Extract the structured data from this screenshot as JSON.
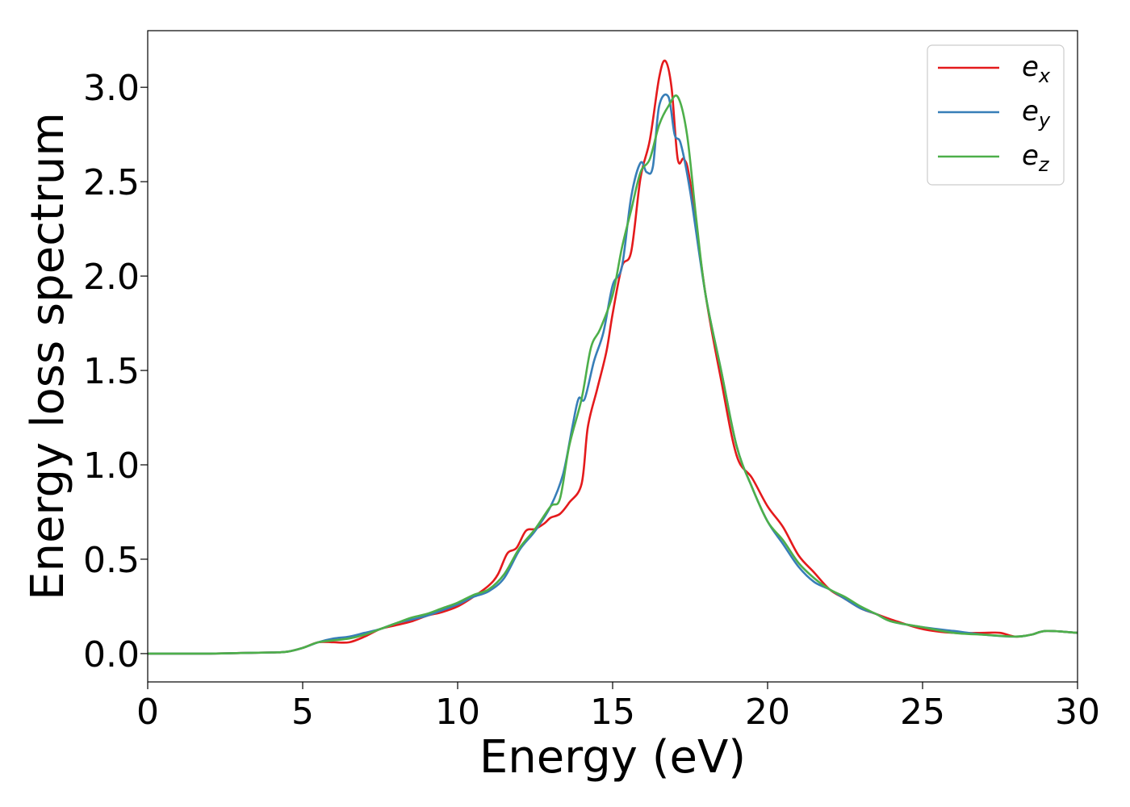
{
  "chart_data": {
    "type": "line",
    "xlabel": "Energy (eV)",
    "ylabel": "Energy loss spectrum",
    "xlim": [
      0,
      30
    ],
    "ylim": [
      -0.15,
      3.3
    ],
    "xticks": [
      0,
      5,
      10,
      15,
      20,
      25,
      30
    ],
    "yticks": [
      0.0,
      0.5,
      1.0,
      1.5,
      2.0,
      2.5,
      3.0
    ],
    "xtick_labels": [
      "0",
      "5",
      "10",
      "15",
      "20",
      "25",
      "30"
    ],
    "ytick_labels": [
      "0.0",
      "0.5",
      "1.0",
      "1.5",
      "2.0",
      "2.5",
      "3.0"
    ],
    "grid": false,
    "legend_position": "top-right",
    "series": [
      {
        "name": "e_x",
        "label_base": "e",
        "label_sub": "x",
        "color": "#e41a1c",
        "points": [
          [
            0,
            0.0
          ],
          [
            1,
            0.0
          ],
          [
            2,
            0.0
          ],
          [
            3,
            0.003
          ],
          [
            4,
            0.006
          ],
          [
            4.5,
            0.01
          ],
          [
            5,
            0.03
          ],
          [
            5.5,
            0.06
          ],
          [
            6,
            0.06
          ],
          [
            6.5,
            0.06
          ],
          [
            7,
            0.09
          ],
          [
            7.5,
            0.13
          ],
          [
            8,
            0.15
          ],
          [
            8.5,
            0.17
          ],
          [
            9,
            0.2
          ],
          [
            9.5,
            0.22
          ],
          [
            10,
            0.25
          ],
          [
            10.5,
            0.3
          ],
          [
            11,
            0.36
          ],
          [
            11.3,
            0.42
          ],
          [
            11.6,
            0.53
          ],
          [
            11.9,
            0.56
          ],
          [
            12.2,
            0.65
          ],
          [
            12.5,
            0.66
          ],
          [
            12.8,
            0.69
          ],
          [
            13,
            0.72
          ],
          [
            13.3,
            0.74
          ],
          [
            13.6,
            0.8
          ],
          [
            14,
            0.9
          ],
          [
            14.2,
            1.2
          ],
          [
            14.5,
            1.4
          ],
          [
            14.8,
            1.6
          ],
          [
            15,
            1.8
          ],
          [
            15.3,
            2.05
          ],
          [
            15.6,
            2.13
          ],
          [
            15.9,
            2.52
          ],
          [
            16.2,
            2.72
          ],
          [
            16.5,
            3.05
          ],
          [
            16.7,
            3.14
          ],
          [
            16.9,
            3.0
          ],
          [
            17.1,
            2.62
          ],
          [
            17.3,
            2.62
          ],
          [
            17.5,
            2.5
          ],
          [
            18,
            1.9
          ],
          [
            18.5,
            1.45
          ],
          [
            19,
            1.05
          ],
          [
            19.5,
            0.93
          ],
          [
            20,
            0.78
          ],
          [
            20.5,
            0.67
          ],
          [
            21,
            0.52
          ],
          [
            21.5,
            0.43
          ],
          [
            22,
            0.34
          ],
          [
            22.5,
            0.29
          ],
          [
            23,
            0.24
          ],
          [
            23.5,
            0.21
          ],
          [
            24,
            0.18
          ],
          [
            25,
            0.13
          ],
          [
            26,
            0.11
          ],
          [
            27,
            0.11
          ],
          [
            27.5,
            0.11
          ],
          [
            28,
            0.09
          ],
          [
            28.5,
            0.1
          ],
          [
            29,
            0.12
          ],
          [
            30,
            0.11
          ]
        ]
      },
      {
        "name": "e_y",
        "label_base": "e",
        "label_sub": "y",
        "color": "#377eb8",
        "points": [
          [
            0,
            0.0
          ],
          [
            1,
            0.0
          ],
          [
            2,
            0.0
          ],
          [
            3,
            0.003
          ],
          [
            4,
            0.006
          ],
          [
            4.5,
            0.01
          ],
          [
            5,
            0.03
          ],
          [
            5.5,
            0.06
          ],
          [
            6,
            0.08
          ],
          [
            6.5,
            0.09
          ],
          [
            7,
            0.11
          ],
          [
            7.5,
            0.13
          ],
          [
            8,
            0.16
          ],
          [
            8.5,
            0.18
          ],
          [
            9,
            0.2
          ],
          [
            9.5,
            0.23
          ],
          [
            10,
            0.26
          ],
          [
            10.5,
            0.3
          ],
          [
            11,
            0.33
          ],
          [
            11.5,
            0.4
          ],
          [
            12,
            0.55
          ],
          [
            12.5,
            0.65
          ],
          [
            13,
            0.78
          ],
          [
            13.4,
            0.95
          ],
          [
            13.7,
            1.2
          ],
          [
            13.9,
            1.35
          ],
          [
            14.1,
            1.35
          ],
          [
            14.4,
            1.55
          ],
          [
            14.7,
            1.7
          ],
          [
            15,
            1.95
          ],
          [
            15.3,
            2.05
          ],
          [
            15.6,
            2.42
          ],
          [
            15.9,
            2.6
          ],
          [
            16.1,
            2.55
          ],
          [
            16.3,
            2.58
          ],
          [
            16.5,
            2.9
          ],
          [
            16.8,
            2.95
          ],
          [
            17.0,
            2.75
          ],
          [
            17.2,
            2.7
          ],
          [
            17.5,
            2.45
          ],
          [
            18,
            1.9
          ],
          [
            18.5,
            1.5
          ],
          [
            19,
            1.1
          ],
          [
            19.5,
            0.88
          ],
          [
            20,
            0.7
          ],
          [
            20.5,
            0.58
          ],
          [
            21,
            0.46
          ],
          [
            21.5,
            0.38
          ],
          [
            22,
            0.34
          ],
          [
            22.5,
            0.29
          ],
          [
            23,
            0.24
          ],
          [
            23.5,
            0.21
          ],
          [
            24,
            0.17
          ],
          [
            25,
            0.14
          ],
          [
            26,
            0.12
          ],
          [
            27,
            0.1
          ],
          [
            28,
            0.09
          ],
          [
            28.5,
            0.1
          ],
          [
            29,
            0.12
          ],
          [
            30,
            0.11
          ]
        ]
      },
      {
        "name": "e_z",
        "label_base": "e",
        "label_sub": "z",
        "color": "#4daf4a",
        "points": [
          [
            0,
            0.0
          ],
          [
            1,
            0.0
          ],
          [
            2,
            0.0
          ],
          [
            3,
            0.003
          ],
          [
            4,
            0.006
          ],
          [
            4.5,
            0.01
          ],
          [
            5,
            0.03
          ],
          [
            5.5,
            0.06
          ],
          [
            6,
            0.07
          ],
          [
            6.5,
            0.08
          ],
          [
            7,
            0.1
          ],
          [
            7.5,
            0.13
          ],
          [
            8,
            0.16
          ],
          [
            8.5,
            0.19
          ],
          [
            9,
            0.21
          ],
          [
            9.5,
            0.24
          ],
          [
            10,
            0.27
          ],
          [
            10.5,
            0.31
          ],
          [
            11,
            0.34
          ],
          [
            11.5,
            0.42
          ],
          [
            12,
            0.56
          ],
          [
            12.5,
            0.66
          ],
          [
            13,
            0.78
          ],
          [
            13.3,
            0.82
          ],
          [
            13.6,
            1.1
          ],
          [
            14,
            1.35
          ],
          [
            14.3,
            1.62
          ],
          [
            14.6,
            1.72
          ],
          [
            15,
            1.9
          ],
          [
            15.3,
            2.15
          ],
          [
            15.6,
            2.35
          ],
          [
            15.9,
            2.55
          ],
          [
            16.2,
            2.62
          ],
          [
            16.5,
            2.8
          ],
          [
            16.8,
            2.9
          ],
          [
            17.1,
            2.95
          ],
          [
            17.4,
            2.75
          ],
          [
            17.7,
            2.3
          ],
          [
            18,
            1.9
          ],
          [
            18.5,
            1.5
          ],
          [
            19,
            1.1
          ],
          [
            19.5,
            0.88
          ],
          [
            20,
            0.7
          ],
          [
            20.5,
            0.6
          ],
          [
            21,
            0.48
          ],
          [
            21.5,
            0.4
          ],
          [
            22,
            0.34
          ],
          [
            22.5,
            0.3
          ],
          [
            23,
            0.25
          ],
          [
            23.5,
            0.21
          ],
          [
            24,
            0.17
          ],
          [
            25,
            0.14
          ],
          [
            26,
            0.11
          ],
          [
            27,
            0.1
          ],
          [
            28,
            0.09
          ],
          [
            28.5,
            0.1
          ],
          [
            29,
            0.12
          ],
          [
            30,
            0.11
          ]
        ]
      }
    ]
  }
}
